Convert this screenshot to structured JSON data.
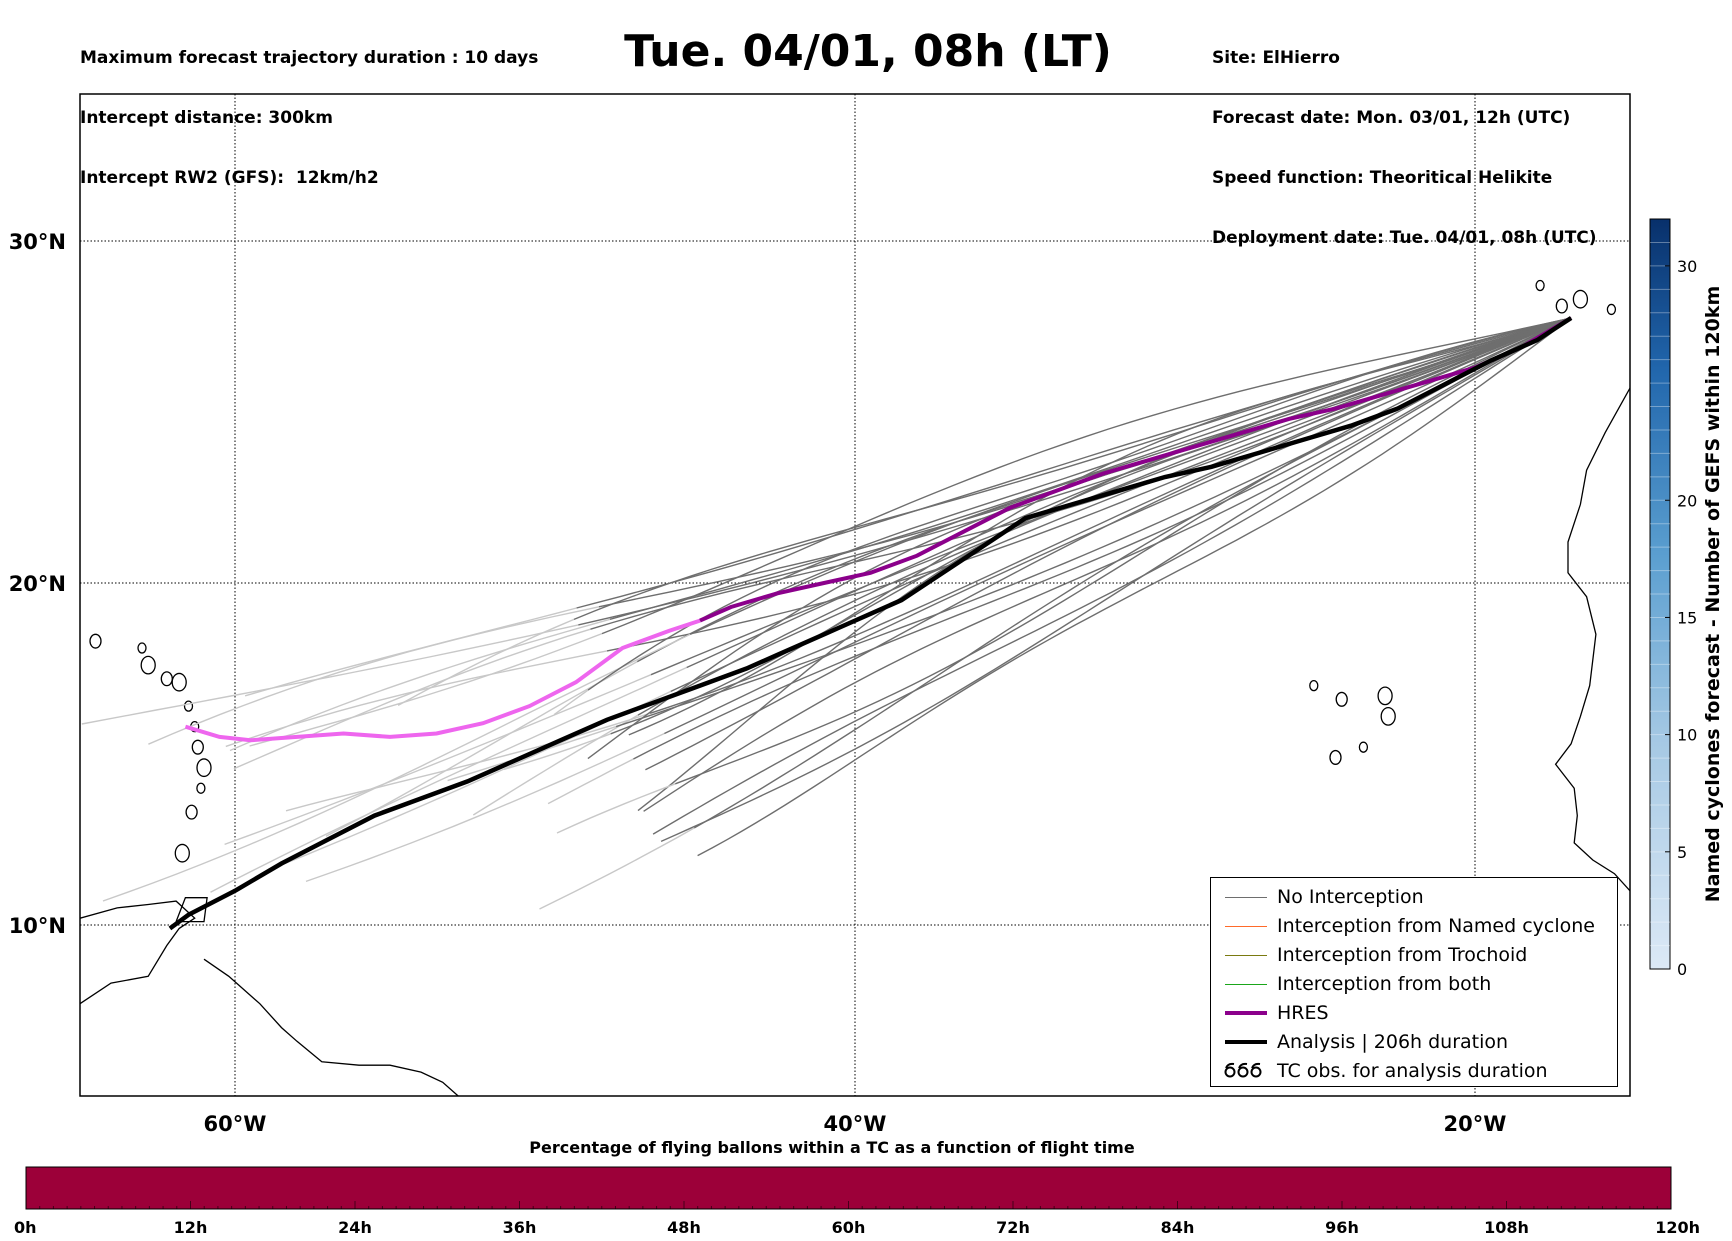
{
  "header": {
    "info_left": [
      "Maximum forecast trajectory duration : 10 days",
      "Intercept distance: 300km",
      "Intercept RW2 (GFS):  12km/h2"
    ],
    "title": "Tue. 04/01, 08h (LT)",
    "info_right": [
      "Site: ElHierro",
      "Forecast date: Mon. 03/01, 12h (UTC)",
      "Speed function: Theoritical Helikite",
      "Deployment date: Tue. 04/01, 08h (UTC)"
    ]
  },
  "map": {
    "lon_range": [
      -65,
      -15
    ],
    "lat_range": [
      5,
      34.3
    ],
    "lon_ticks": [
      {
        "lon": -60,
        "label": "60°W"
      },
      {
        "lon": -40,
        "label": "40°W"
      },
      {
        "lon": -20,
        "label": "20°W"
      }
    ],
    "lat_ticks": [
      {
        "lat": 10,
        "label": "10°N"
      },
      {
        "lat": 20,
        "label": "20°N"
      },
      {
        "lat": 30,
        "label": "30°N"
      }
    ],
    "grid": true
  },
  "legend": {
    "placement": "lower-right",
    "items": [
      {
        "label": "No Interception",
        "color": "#6e6e6e",
        "style": "thin"
      },
      {
        "label": "Interception from Named cyclone",
        "color": "#ff6a2a",
        "style": "thin"
      },
      {
        "label": "Interception from Trochoid",
        "color": "#7a7a10",
        "style": "thin"
      },
      {
        "label": "Interception from both",
        "color": "#1aa61a",
        "style": "thin"
      },
      {
        "label": "HRES",
        "color": "#8b008b",
        "style": "thick"
      },
      {
        "label": "Analysis | 206h duration",
        "color": "#000000",
        "style": "thick"
      },
      {
        "label": "TC obs. for analysis duration",
        "color": "#000000",
        "style": "tc-symbol"
      }
    ]
  },
  "colorbar": {
    "label": "Named cyclones forecast - Number of GEFS within 120km",
    "range": [
      0,
      32
    ],
    "ticks": [
      0,
      5,
      10,
      15,
      20,
      30
    ],
    "color_low": "#dce9f6",
    "color_high": "#08306b"
  },
  "timebar": {
    "title": "Percentage of flying ballons within a TC as a function of flight time",
    "color": "#9c0039",
    "ticks": [
      "0h",
      "12h",
      "24h",
      "36h",
      "48h",
      "60h",
      "72h",
      "84h",
      "96h",
      "108h",
      "120h"
    ]
  },
  "trajectories": {
    "origin": {
      "lon": -16.9,
      "lat": 27.75
    },
    "analysis": [
      [
        -16.9,
        27.75
      ],
      [
        -18,
        27.1
      ],
      [
        -19.5,
        26.5
      ],
      [
        -21,
        25.8
      ],
      [
        -22.5,
        25.1
      ],
      [
        -24,
        24.6
      ],
      [
        -25.5,
        24.2
      ],
      [
        -27,
        23.8
      ],
      [
        -28.5,
        23.4
      ],
      [
        -30,
        23.1
      ],
      [
        -31.5,
        22.7
      ],
      [
        -33,
        22.3
      ],
      [
        -34.5,
        21.9
      ],
      [
        -35.5,
        21.3
      ],
      [
        -36.5,
        20.7
      ],
      [
        -37.5,
        20.1
      ],
      [
        -38.5,
        19.5
      ],
      [
        -39.5,
        19.1
      ],
      [
        -40.5,
        18.7
      ],
      [
        -41.5,
        18.3
      ],
      [
        -42.5,
        17.9
      ],
      [
        -43.5,
        17.5
      ],
      [
        -45,
        17
      ],
      [
        -46.5,
        16.5
      ],
      [
        -48,
        16
      ],
      [
        -49.5,
        15.4
      ],
      [
        -51,
        14.8
      ],
      [
        -52.5,
        14.2
      ],
      [
        -54,
        13.7
      ],
      [
        -55.5,
        13.2
      ],
      [
        -57,
        12.5
      ],
      [
        -58.5,
        11.8
      ],
      [
        -60,
        11
      ],
      [
        -61.5,
        10.3
      ],
      [
        -62.1,
        9.9
      ]
    ],
    "hres": [
      [
        -16.9,
        27.75
      ],
      [
        -18.5,
        26.9
      ],
      [
        -20,
        26.3
      ],
      [
        -21.5,
        25.9
      ],
      [
        -23,
        25.5
      ],
      [
        -24.5,
        25.1
      ],
      [
        -26,
        24.8
      ],
      [
        -27.5,
        24.4
      ],
      [
        -29,
        24
      ],
      [
        -30.5,
        23.6
      ],
      [
        -32,
        23.2
      ],
      [
        -33.5,
        22.7
      ],
      [
        -35,
        22.2
      ],
      [
        -36.5,
        21.5
      ],
      [
        -38,
        20.8
      ],
      [
        -39.5,
        20.3
      ],
      [
        -41,
        20
      ],
      [
        -42.5,
        19.7
      ],
      [
        -44,
        19.3
      ],
      [
        -45,
        18.9
      ],
      [
        -46,
        18.6
      ],
      [
        -47.5,
        18.1
      ],
      [
        -49,
        17.1
      ],
      [
        -50.5,
        16.4
      ],
      [
        -52,
        15.9
      ],
      [
        -53.5,
        15.6
      ],
      [
        -55,
        15.5
      ],
      [
        -56.5,
        15.6
      ],
      [
        -58,
        15.5
      ],
      [
        -59.5,
        15.4
      ],
      [
        -60.5,
        15.5
      ],
      [
        -61.6,
        15.8
      ]
    ],
    "hres_split_lon": -45.5,
    "hres_color_early": "#8b008b",
    "hres_color_late": "#ee66ee",
    "ensemble_color_early": "#6e6e6e",
    "ensemble_color_late": "#c8c8c8",
    "ensemble_count": 30
  },
  "coastlines": {
    "caribbean_islands": [
      [
        -61.3,
        15.8
      ],
      [
        -61.2,
        15.2
      ],
      [
        -61,
        14.6
      ],
      [
        -61.1,
        14
      ],
      [
        -61.4,
        13.3
      ],
      [
        -61.7,
        12.1
      ],
      [
        -61.5,
        16.4
      ],
      [
        -62.2,
        17.2
      ],
      [
        -62.8,
        17.6
      ],
      [
        -63,
        18.1
      ],
      [
        -64.5,
        18.3
      ],
      [
        -61.8,
        17.1
      ]
    ],
    "canary_islands": [
      [
        -17.9,
        28.7
      ],
      [
        -17.2,
        28.1
      ],
      [
        -16.6,
        28.3
      ],
      [
        -15.6,
        28
      ],
      [
        -14,
        28.4
      ],
      [
        -13.6,
        29
      ]
    ],
    "cape_verde": [
      [
        -25.2,
        17
      ],
      [
        -24.3,
        16.6
      ],
      [
        -22.9,
        16.7
      ],
      [
        -23.6,
        15.2
      ],
      [
        -24.5,
        14.9
      ],
      [
        -22.8,
        16.1
      ]
    ]
  }
}
